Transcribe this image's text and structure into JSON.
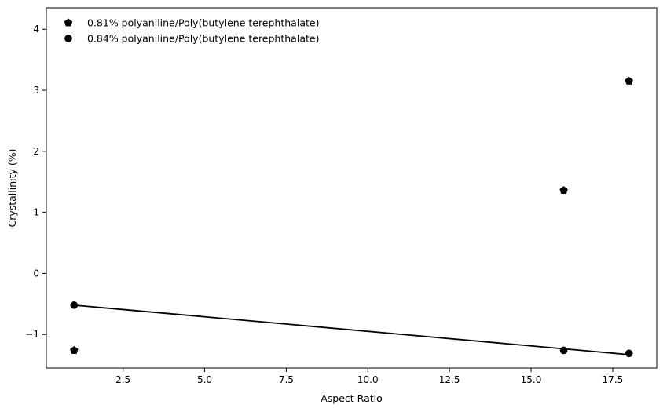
{
  "chart_data": {
    "type": "scatter",
    "title": "",
    "xlabel": "Aspect Ratio",
    "ylabel": "Crystallinity (%)",
    "xlim": [
      0.15,
      18.85
    ],
    "ylim": [
      -1.55,
      4.35
    ],
    "grid": false,
    "legend_position": "top-left",
    "x_ticks": [
      2.5,
      5.0,
      7.5,
      10.0,
      12.5,
      15.0,
      17.5
    ],
    "x_tick_labels": [
      "2.5",
      "5.0",
      "7.5",
      "10.0",
      "12.5",
      "15.0",
      "17.5"
    ],
    "y_ticks": [
      -1,
      0,
      1,
      2,
      3,
      4
    ],
    "y_tick_labels": [
      "−1",
      "0",
      "1",
      "2",
      "3",
      "4"
    ],
    "series": [
      {
        "name": "0.81% polyaniline/Poly(butylene terephthalate)",
        "marker": "pentagon",
        "color": "#000000",
        "x": [
          1,
          16,
          18
        ],
        "y": [
          -1.26,
          1.36,
          3.15
        ]
      },
      {
        "name": "0.84% polyaniline/Poly(butylene terephthalate)",
        "marker": "circle",
        "color": "#000000",
        "x": [
          1,
          16,
          18
        ],
        "y": [
          -0.52,
          -1.26,
          -1.31
        ]
      }
    ],
    "lines": [
      {
        "series": "0.84% polyaniline/Poly(butylene terephthalate)",
        "color": "#000000",
        "x": [
          1,
          18
        ],
        "y": [
          -0.52,
          -1.33
        ]
      }
    ]
  }
}
